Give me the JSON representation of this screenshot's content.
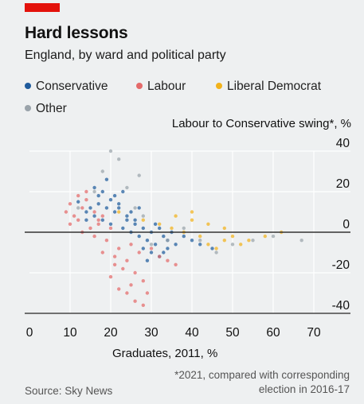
{
  "header": {
    "title": "Hard lessons",
    "subtitle": "England, by ward and political party"
  },
  "legend": [
    {
      "label": "Conservative",
      "color": "#1f5b9c"
    },
    {
      "label": "Labour",
      "color": "#e46a6a"
    },
    {
      "label": "Liberal Democrat",
      "color": "#f2b21b"
    },
    {
      "label": "Other",
      "color": "#9aa3aa"
    }
  ],
  "footer": {
    "footnote_line1": "*2021, compared with corresponding",
    "footnote_line2": "election in 2016-17",
    "source": "Source: Sky News"
  },
  "chart_data": {
    "type": "scatter",
    "title": "Hard lessons",
    "subtitle": "England, by ward and political party",
    "xlabel": "Graduates, 2011, %",
    "ylabel": "Labour to Conservative swing*, %",
    "xlim": [
      0,
      80
    ],
    "ylim": [
      -40,
      40
    ],
    "x_ticks": [
      0,
      10,
      20,
      30,
      40,
      50,
      60,
      70
    ],
    "y_ticks": [
      40,
      20,
      0,
      -20,
      -40
    ],
    "grid": true,
    "legend_position": "top-left",
    "series": [
      {
        "name": "Conservative",
        "color": "#1f5b9c",
        "x": [
          12,
          14,
          15,
          16,
          17,
          18,
          19,
          20,
          21,
          22,
          23,
          24,
          25,
          26,
          27,
          28,
          29,
          30,
          31,
          32,
          33,
          34,
          35,
          36,
          38,
          40,
          42,
          45,
          16,
          18,
          20,
          22,
          24,
          26,
          28,
          30,
          32,
          34,
          14,
          17,
          19,
          21,
          23,
          25,
          27,
          29,
          31,
          33
        ],
        "y": [
          15,
          10,
          12,
          8,
          18,
          6,
          12,
          4,
          10,
          14,
          2,
          6,
          0,
          4,
          -2,
          2,
          -4,
          0,
          -6,
          2,
          -2,
          -4,
          0,
          -6,
          -2,
          -4,
          -6,
          -8,
          22,
          20,
          16,
          12,
          8,
          6,
          -8,
          -10,
          -12,
          -8,
          6,
          14,
          26,
          18,
          20,
          10,
          12,
          -14,
          4,
          -10
        ]
      },
      {
        "name": "Labour",
        "color": "#e46a6a",
        "x": [
          9,
          10,
          11,
          12,
          13,
          14,
          15,
          16,
          17,
          18,
          19,
          20,
          21,
          22,
          23,
          24,
          25,
          26,
          27,
          28,
          30,
          32,
          34,
          36,
          12,
          14,
          16,
          18,
          20,
          22,
          24,
          26,
          28,
          10,
          13,
          17,
          21,
          25,
          29
        ],
        "y": [
          10,
          14,
          8,
          6,
          12,
          16,
          2,
          10,
          4,
          8,
          -4,
          2,
          -12,
          -8,
          -18,
          -14,
          -6,
          -20,
          -10,
          -24,
          -8,
          -12,
          -14,
          -16,
          18,
          20,
          -2,
          -10,
          -22,
          -28,
          -30,
          -34,
          -36,
          4,
          0,
          6,
          -16,
          -26,
          -30
        ]
      },
      {
        "name": "Liberal Democrat",
        "color": "#f2b21b",
        "x": [
          22,
          28,
          32,
          35,
          38,
          40,
          42,
          44,
          46,
          48,
          50,
          52,
          54,
          58,
          62,
          36,
          40,
          44,
          48
        ],
        "y": [
          10,
          6,
          4,
          2,
          0,
          6,
          -2,
          -6,
          -8,
          -4,
          -2,
          -6,
          -4,
          -2,
          0,
          8,
          10,
          4,
          2
        ]
      },
      {
        "name": "Other",
        "color": "#9aa3aa",
        "x": [
          12,
          16,
          18,
          20,
          24,
          26,
          28,
          30,
          34,
          38,
          42,
          46,
          50,
          55,
          60,
          67,
          22,
          27
        ],
        "y": [
          12,
          20,
          30,
          40,
          22,
          12,
          8,
          -6,
          -4,
          2,
          -4,
          -10,
          -6,
          -4,
          -2,
          -4,
          36,
          28
        ]
      }
    ]
  }
}
